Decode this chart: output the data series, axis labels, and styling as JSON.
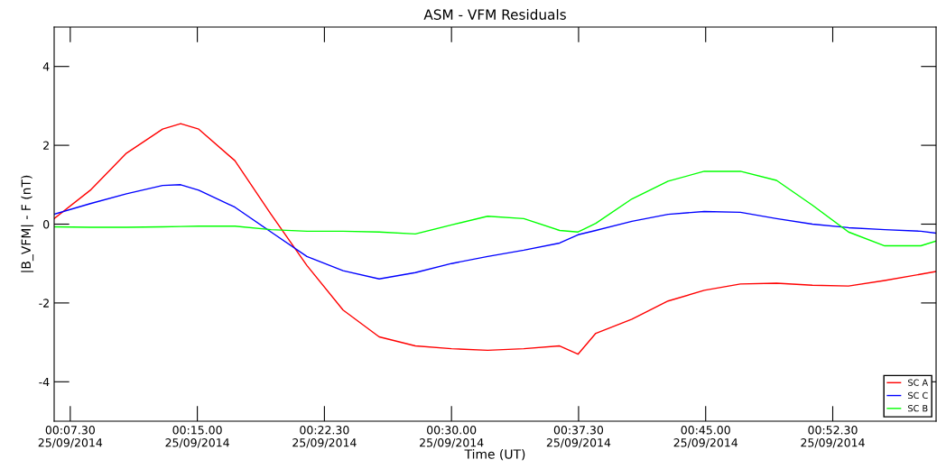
{
  "chart_data": {
    "type": "line",
    "title": "ASM - VFM Residuals",
    "xlabel": "Time (UT)",
    "ylabel": "|B_VFM| - F (nT)",
    "xlim": [
      "2014-09-25T00:06:33",
      "2014-09-25T00:58:36"
    ],
    "ylim": [
      -5,
      5
    ],
    "yticks": [
      -4,
      -2,
      0,
      2,
      4
    ],
    "xticks": [
      {
        "value": "2014-09-25T00:07:30",
        "label": "00:07.30\n25/09/2014"
      },
      {
        "value": "2014-09-25T00:15:00",
        "label": "00:15.00\n25/09/2014"
      },
      {
        "value": "2014-09-25T00:22:30",
        "label": "00:22.30\n25/09/2014"
      },
      {
        "value": "2014-09-25T00:30:00",
        "label": "00:30.00\n25/09/2014"
      },
      {
        "value": "2014-09-25T00:37:30",
        "label": "00:37.30\n25/09/2014"
      },
      {
        "value": "2014-09-25T00:45:00",
        "label": "00:45.00\n25/09/2014"
      },
      {
        "value": "2014-09-25T00:52:30",
        "label": "00:52.30\n25/09/2014"
      }
    ],
    "grid": false,
    "legend": "bottom right",
    "marker": "none",
    "line_style": "solid",
    "x": [
      "2014-09-25T00:06:33",
      "2014-09-25T00:08:41",
      "2014-09-25T00:10:49",
      "2014-09-25T00:12:57",
      "2014-09-25T00:14:01",
      "2014-09-25T00:15:05",
      "2014-09-25T00:17:13",
      "2014-09-25T00:19:21",
      "2014-09-25T00:21:28",
      "2014-09-25T00:23:36",
      "2014-09-25T00:25:44",
      "2014-09-25T00:27:52",
      "2014-09-25T00:30:00",
      "2014-09-25T00:32:08",
      "2014-09-25T00:34:16",
      "2014-09-25T00:36:23",
      "2014-09-25T00:37:28",
      "2014-09-25T00:38:31",
      "2014-09-25T00:40:39",
      "2014-09-25T00:42:47",
      "2014-09-25T00:44:55",
      "2014-09-25T00:47:03",
      "2014-09-25T00:49:11",
      "2014-09-25T00:51:18",
      "2014-09-25T00:53:26",
      "2014-09-25T00:55:34",
      "2014-09-25T00:57:42",
      "2014-09-25T00:58:36"
    ],
    "series": [
      {
        "name": "SC A",
        "color": "#ff0000",
        "values": [
          0.14,
          0.86,
          1.8,
          2.41,
          2.55,
          2.41,
          1.61,
          0.25,
          -1.05,
          -2.18,
          -2.86,
          -3.09,
          -3.16,
          -3.2,
          -3.16,
          -3.09,
          -3.3,
          -2.77,
          -2.41,
          -1.95,
          -1.68,
          -1.52,
          -1.5,
          -1.55,
          -1.57,
          -1.43,
          -1.27,
          -1.2
        ]
      },
      {
        "name": "SC C",
        "color": "#0000ff",
        "values": [
          0.25,
          0.52,
          0.77,
          0.98,
          1.0,
          0.86,
          0.43,
          -0.2,
          -0.82,
          -1.18,
          -1.39,
          -1.23,
          -1.0,
          -0.82,
          -0.66,
          -0.48,
          -0.27,
          -0.16,
          0.07,
          0.25,
          0.32,
          0.3,
          0.14,
          0.0,
          -0.09,
          -0.14,
          -0.18,
          -0.23
        ]
      },
      {
        "name": "SC B",
        "color": "#00ff00",
        "values": [
          -0.07,
          -0.08,
          -0.08,
          -0.07,
          -0.06,
          -0.05,
          -0.05,
          -0.14,
          -0.18,
          -0.18,
          -0.2,
          -0.25,
          -0.02,
          0.2,
          0.14,
          -0.16,
          -0.2,
          0.02,
          0.64,
          1.09,
          1.34,
          1.34,
          1.11,
          0.48,
          -0.2,
          -0.55,
          -0.55,
          -0.43
        ]
      }
    ]
  }
}
